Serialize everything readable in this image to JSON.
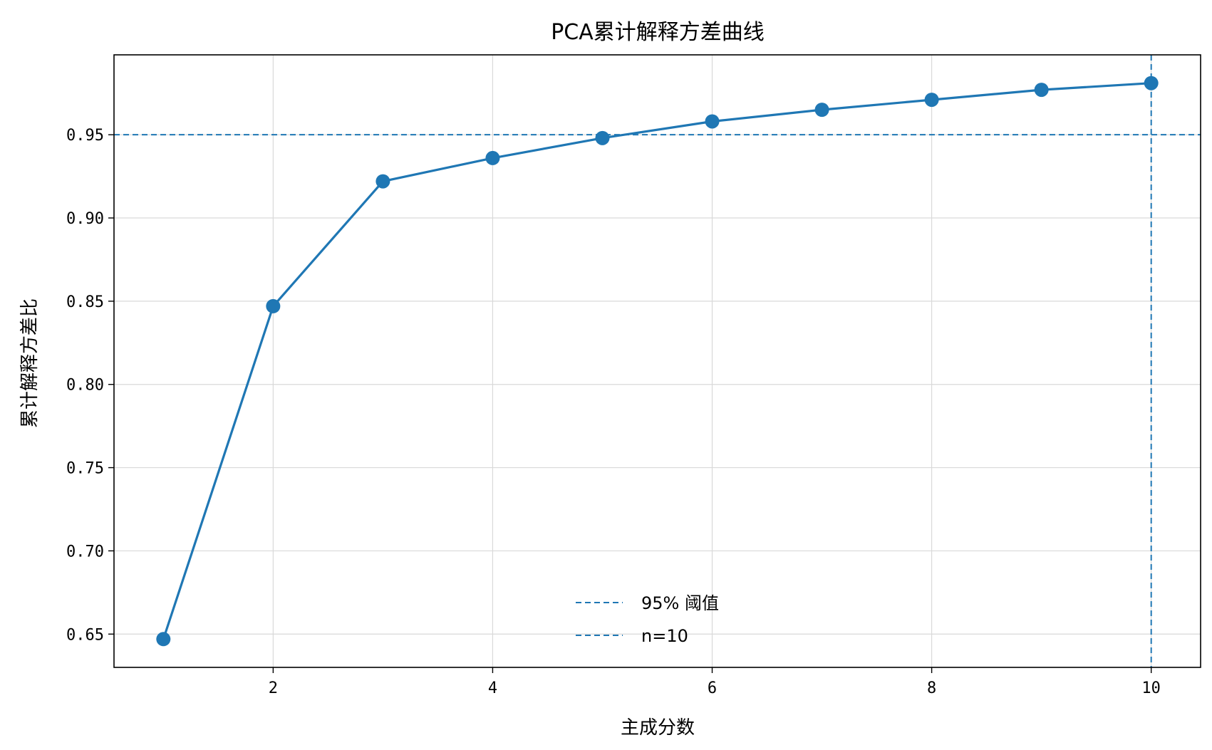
{
  "chart_data": {
    "type": "line",
    "title": "PCA累计解释方差曲线",
    "xlabel": "主成分数",
    "ylabel": "累计解释方差比",
    "x": [
      1,
      2,
      3,
      4,
      5,
      6,
      7,
      8,
      9,
      10
    ],
    "series": [
      {
        "values": [
          0.647,
          0.847,
          0.922,
          0.936,
          0.948,
          0.958,
          0.965,
          0.971,
          0.977,
          0.981
        ],
        "color": "#1f77b4",
        "marker": "circle"
      }
    ],
    "reference_lines": [
      {
        "orientation": "horizontal",
        "value": 0.95,
        "label": "95% 阈值",
        "style": "dashed",
        "color": "#1f77b4"
      },
      {
        "orientation": "vertical",
        "value": 10,
        "label": "n=10",
        "style": "dashed",
        "color": "#1f77b4"
      }
    ],
    "xlim": [
      0.55,
      10.45
    ],
    "ylim": [
      0.63,
      0.998
    ],
    "xticks": [
      2,
      4,
      6,
      8,
      10
    ],
    "xtick_labels": [
      "2",
      "4",
      "6",
      "8",
      "10"
    ],
    "yticks": [
      0.65,
      0.7,
      0.75,
      0.8,
      0.85,
      0.9,
      0.95
    ],
    "ytick_labels": [
      "0.65",
      "0.70",
      "0.75",
      "0.80",
      "0.85",
      "0.90",
      "0.95"
    ],
    "grid": true,
    "legend_position": "lower-center"
  }
}
